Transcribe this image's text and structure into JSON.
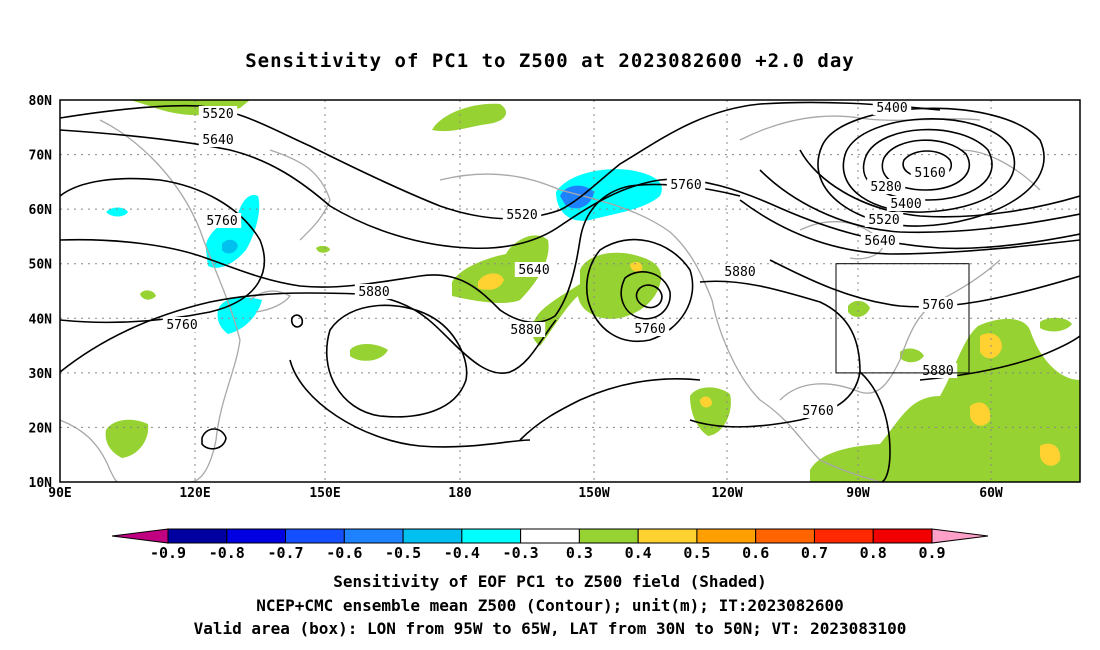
{
  "title": "Sensitivity of PC1 to Z500 at 2023082600 +2.0 day",
  "map": {
    "lat_labels": [
      "80N",
      "70N",
      "60N",
      "50N",
      "40N",
      "30N",
      "20N",
      "10N"
    ],
    "lon_labels": [
      "90E",
      "120E",
      "150E",
      "180",
      "150W",
      "120W",
      "90W",
      "60W"
    ],
    "extent": {
      "lon": [
        "90E",
        "50W"
      ],
      "lat": [
        "10N",
        "80N"
      ]
    },
    "grid": "dotted",
    "colors": {
      "coast": "#a8a8a8",
      "contour": "#000000",
      "grid": "#888888"
    },
    "contour_labels": [
      {
        "text": "5520"
      },
      {
        "text": "5640"
      },
      {
        "text": "5760"
      },
      {
        "text": "5760"
      },
      {
        "text": "5520"
      },
      {
        "text": "5640"
      },
      {
        "text": "5760"
      },
      {
        "text": "5880"
      },
      {
        "text": "5760"
      },
      {
        "text": "5760"
      },
      {
        "text": "5880"
      },
      {
        "text": "5400"
      },
      {
        "text": "5160"
      },
      {
        "text": "5280"
      },
      {
        "text": "5400"
      },
      {
        "text": "5520"
      },
      {
        "text": "5640"
      },
      {
        "text": "5760"
      },
      {
        "text": "5880"
      },
      {
        "text": "5880"
      }
    ],
    "valid_box": {
      "lon": [
        "95W",
        "65W"
      ],
      "lat": [
        "30N",
        "50N"
      ]
    }
  },
  "colorbar": {
    "labels": [
      "-0.9",
      "-0.8",
      "-0.7",
      "-0.6",
      "-0.5",
      "-0.4",
      "-0.3",
      "0.3",
      "0.4",
      "0.5",
      "0.6",
      "0.7",
      "0.8",
      "0.9"
    ],
    "colors": [
      "#0000a0",
      "#0000e0",
      "#1450ff",
      "#1e82ff",
      "#00c0f0",
      "#00ffff",
      "#ffffff",
      "#96d232",
      "#ffd232",
      "#ffa000",
      "#ff6400",
      "#ff2800",
      "#f00000"
    ],
    "low_arrow_color": "#c00080",
    "high_arrow_color": "#ffa0c8"
  },
  "caption": {
    "line1": "Sensitivity of EOF PC1 to Z500 field (Shaded)",
    "line2": "NCEP+CMC ensemble mean Z500 (Contour); unit(m); IT:2023082600",
    "line3": "Valid area (box): LON from 95W to 65W, LAT from 30N to 50N; VT: 2023083100"
  }
}
